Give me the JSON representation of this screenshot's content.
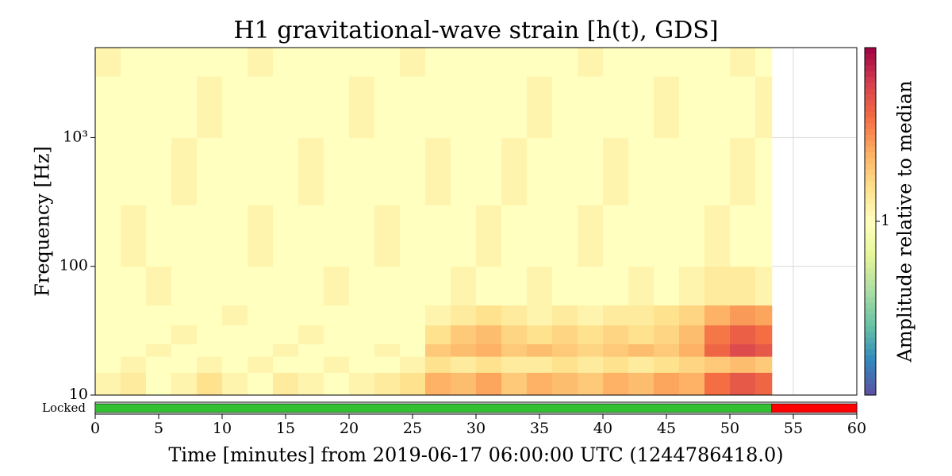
{
  "chart_data": {
    "type": "spectrogram",
    "title": "H1 gravitational-wave strain [h(t), GDS]",
    "xlabel": "Time [minutes] from 2019-06-17 06:00:00 UTC (1244786418.0)",
    "ylabel": "Frequency [Hz]",
    "colorbar_label": "Amplitude relative to median",
    "xlim": [
      0,
      60
    ],
    "xticks": [
      0,
      5,
      10,
      15,
      20,
      25,
      30,
      35,
      40,
      45,
      50,
      55,
      60
    ],
    "ylim": [
      10,
      5000
    ],
    "yscale": "log",
    "yticks": [
      10,
      100,
      {
        "value": 1000,
        "label": "10³"
      }
    ],
    "grid": true,
    "clim": [
      0.25,
      4
    ],
    "cscale": "log",
    "cticks": [
      1
    ],
    "colormap": [
      "#5e4fa2",
      "#3288bd",
      "#66c2a5",
      "#abdda4",
      "#e6f598",
      "#ffffbf",
      "#fee08b",
      "#fdae61",
      "#f46d43",
      "#d53e4f",
      "#9e0142"
    ],
    "x_edges": [
      0,
      2,
      4,
      6,
      8,
      10,
      12,
      14,
      16,
      18,
      20,
      22,
      24,
      26,
      28,
      30,
      32,
      34,
      36,
      38,
      40,
      42,
      44,
      46,
      48,
      50,
      52,
      53.3
    ],
    "y_edges": [
      10,
      15,
      20,
      25,
      35,
      50,
      100,
      300,
      1000,
      3000,
      5000
    ],
    "values": [
      [
        1.1,
        1.2,
        1.0,
        1.1,
        1.3,
        1.1,
        1.0,
        1.2,
        1.1,
        1.0,
        1.1,
        1.2,
        1.3,
        1.7,
        1.6,
        1.8,
        1.5,
        1.7,
        1.6,
        1.5,
        1.7,
        1.6,
        1.8,
        1.7,
        2.3,
        2.6,
        2.4
      ],
      [
        1.0,
        1.1,
        1.0,
        1.0,
        1.1,
        1.0,
        1.1,
        1.0,
        1.0,
        1.1,
        1.0,
        1.0,
        1.1,
        1.3,
        1.2,
        1.3,
        1.2,
        1.2,
        1.3,
        1.2,
        1.3,
        1.2,
        1.3,
        1.4,
        1.5,
        1.6,
        1.5
      ],
      [
        1.0,
        1.0,
        1.1,
        1.0,
        1.0,
        1.0,
        1.0,
        1.1,
        1.0,
        1.0,
        1.0,
        1.1,
        1.0,
        1.5,
        1.6,
        1.7,
        1.5,
        1.6,
        1.5,
        1.4,
        1.5,
        1.6,
        1.5,
        1.7,
        2.4,
        2.8,
        2.6
      ],
      [
        1.0,
        1.0,
        1.0,
        1.1,
        1.0,
        1.0,
        1.0,
        1.0,
        1.1,
        1.0,
        1.0,
        1.0,
        1.0,
        1.3,
        1.5,
        1.6,
        1.4,
        1.3,
        1.4,
        1.3,
        1.4,
        1.3,
        1.4,
        1.6,
        2.2,
        2.5,
        2.3
      ],
      [
        1.0,
        1.0,
        1.0,
        1.0,
        1.0,
        1.1,
        1.0,
        1.0,
        1.0,
        1.0,
        1.0,
        1.0,
        1.0,
        1.1,
        1.2,
        1.3,
        1.2,
        1.1,
        1.2,
        1.1,
        1.2,
        1.2,
        1.3,
        1.4,
        1.7,
        1.9,
        1.8
      ],
      [
        1.0,
        1.0,
        1.1,
        1.0,
        1.0,
        1.0,
        1.0,
        1.0,
        1.0,
        1.1,
        1.0,
        1.0,
        1.0,
        1.0,
        1.1,
        1.0,
        1.0,
        1.1,
        1.0,
        1.0,
        1.0,
        1.1,
        1.0,
        1.1,
        1.2,
        1.2,
        1.1
      ],
      [
        1.0,
        1.1,
        1.0,
        1.0,
        1.0,
        1.0,
        1.1,
        1.0,
        1.0,
        1.0,
        1.0,
        1.1,
        1.0,
        1.0,
        1.0,
        1.1,
        1.0,
        1.0,
        1.0,
        1.1,
        1.0,
        1.0,
        1.0,
        1.0,
        1.1,
        1.0,
        1.0
      ],
      [
        1.0,
        1.0,
        1.0,
        1.1,
        1.0,
        1.0,
        1.0,
        1.0,
        1.1,
        1.0,
        1.0,
        1.0,
        1.0,
        1.1,
        1.0,
        1.0,
        1.1,
        1.0,
        1.0,
        1.0,
        1.1,
        1.0,
        1.0,
        1.0,
        1.0,
        1.1,
        1.0
      ],
      [
        1.0,
        1.0,
        1.0,
        1.0,
        1.1,
        1.0,
        1.0,
        1.0,
        1.0,
        1.0,
        1.1,
        1.0,
        1.0,
        1.0,
        1.0,
        1.0,
        1.0,
        1.1,
        1.0,
        1.0,
        1.0,
        1.0,
        1.1,
        1.0,
        1.0,
        1.0,
        1.1
      ],
      [
        1.1,
        1.0,
        1.0,
        1.0,
        1.0,
        1.0,
        1.1,
        1.0,
        1.0,
        1.0,
        1.0,
        1.0,
        1.1,
        1.0,
        1.0,
        1.0,
        1.0,
        1.0,
        1.0,
        1.1,
        1.0,
        1.0,
        1.0,
        1.0,
        1.0,
        1.1,
        1.0
      ]
    ],
    "segments": {
      "label": "Locked",
      "bars": [
        {
          "start": 0,
          "end": 53.3,
          "color": "#33c033"
        },
        {
          "start": 53.3,
          "end": 60,
          "color": "#ff0000"
        }
      ]
    }
  }
}
